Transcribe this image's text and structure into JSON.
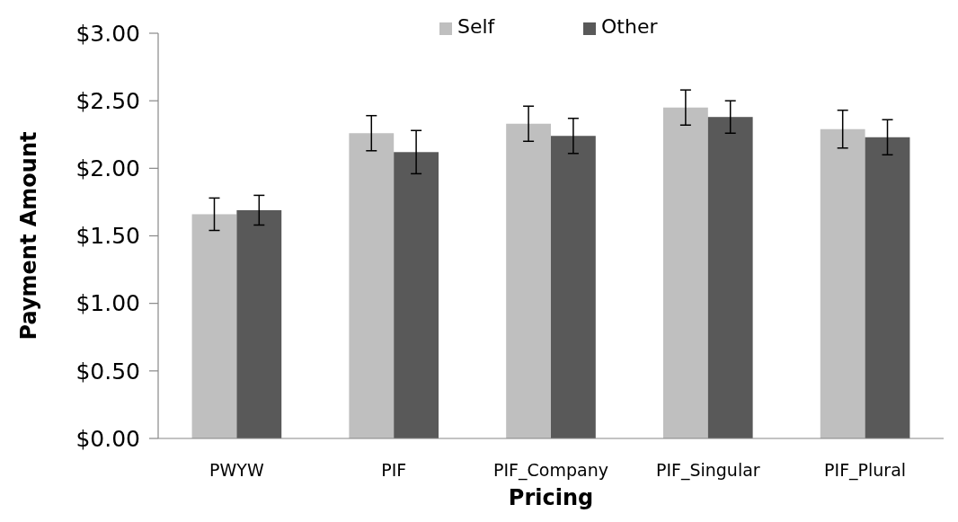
{
  "chart_data": {
    "type": "bar",
    "xlabel": "Pricing",
    "ylabel": "Payment Amount",
    "categories": [
      "PWYW",
      "PIF",
      "PIF_Company",
      "PIF_Singular",
      "PIF_Plural"
    ],
    "series": [
      {
        "name": "Self",
        "color": "#bfbfbf",
        "values": [
          1.66,
          2.26,
          2.33,
          2.45,
          2.29
        ],
        "errors": [
          0.12,
          0.13,
          0.13,
          0.13,
          0.14
        ]
      },
      {
        "name": "Other",
        "color": "#595959",
        "values": [
          1.69,
          2.12,
          2.24,
          2.38,
          2.23
        ],
        "errors": [
          0.11,
          0.16,
          0.13,
          0.12,
          0.13
        ]
      }
    ],
    "ylim": [
      0,
      3
    ],
    "yticks": [
      {
        "value": 0,
        "label": "$0.00"
      },
      {
        "value": 0.5,
        "label": "$0.50"
      },
      {
        "value": 1,
        "label": "$1.00"
      },
      {
        "value": 1.5,
        "label": "$1.50"
      },
      {
        "value": 2,
        "label": "$2.00"
      },
      {
        "value": 2.5,
        "label": "$2.50"
      },
      {
        "value": 3,
        "label": "$3.00"
      }
    ],
    "grid": false,
    "legend": "top"
  }
}
